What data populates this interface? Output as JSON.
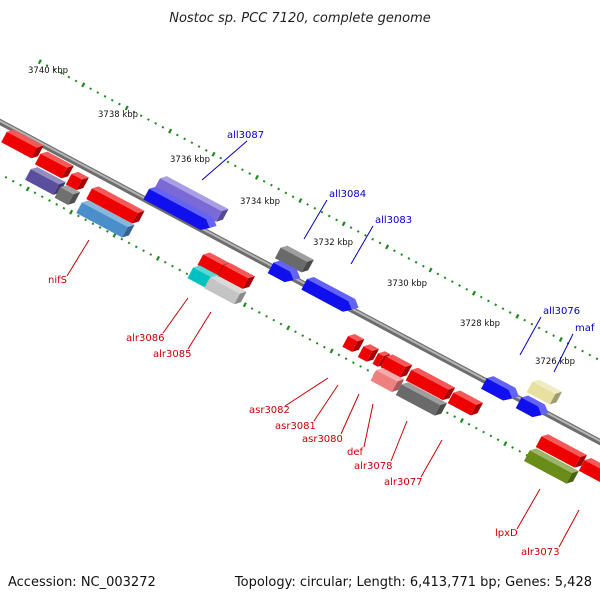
{
  "title": "Nostoc sp. PCC 7120, complete genome",
  "footer": {
    "accession": "Accession: NC_003272",
    "summary": "Topology: circular; Length: 6,413,771 bp; Genes: 5,428"
  },
  "colors": {
    "backbone": "#8a8a8a",
    "tick": "#1d8a1d",
    "forward_label": "#0000cc",
    "reverse_label": "#cc0000"
  },
  "scale_labels": [
    "3740 kbp",
    "3738 kbp",
    "3736 kbp",
    "3734 kbp",
    "3732 kbp",
    "3730 kbp",
    "3728 kbp",
    "3726 kbp"
  ],
  "gene_labels": {
    "forward": [
      "all3087",
      "all3084",
      "all3083",
      "all3076",
      "maf"
    ],
    "reverse": [
      "nifS",
      "alr3086",
      "alr3085",
      "asr3082",
      "asr3081",
      "asr3080",
      "def",
      "alr3078",
      "alr3077",
      "lpxD",
      "alr3073"
    ]
  }
}
